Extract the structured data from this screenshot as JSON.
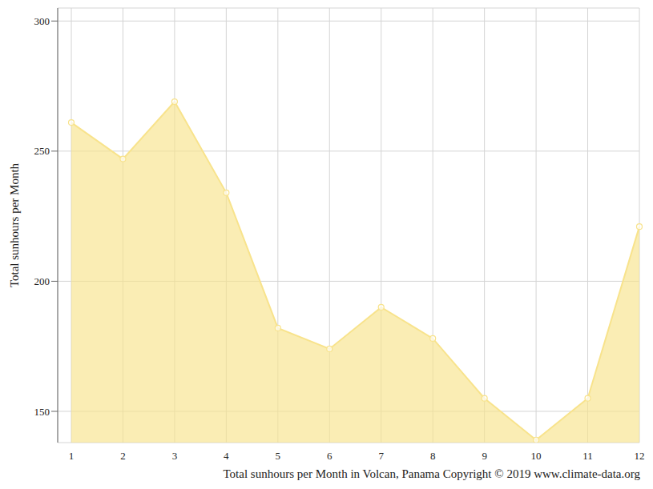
{
  "chart_data": {
    "type": "area",
    "xlabel": "Total sunhours per Month in Volcan, Panama Copyright © 2019 www.climate-data.org",
    "ylabel": "Total sunhours per Month",
    "categories": [
      "1",
      "2",
      "3",
      "4",
      "5",
      "6",
      "7",
      "8",
      "9",
      "10",
      "11",
      "12"
    ],
    "values": [
      261,
      247,
      269,
      234,
      182,
      174,
      190,
      178,
      155,
      139,
      155,
      221
    ],
    "color": "#f8e38c",
    "ylim": [
      138,
      305
    ],
    "yticks": [
      150,
      200,
      250,
      300
    ],
    "grid": true,
    "marker": "circle"
  }
}
